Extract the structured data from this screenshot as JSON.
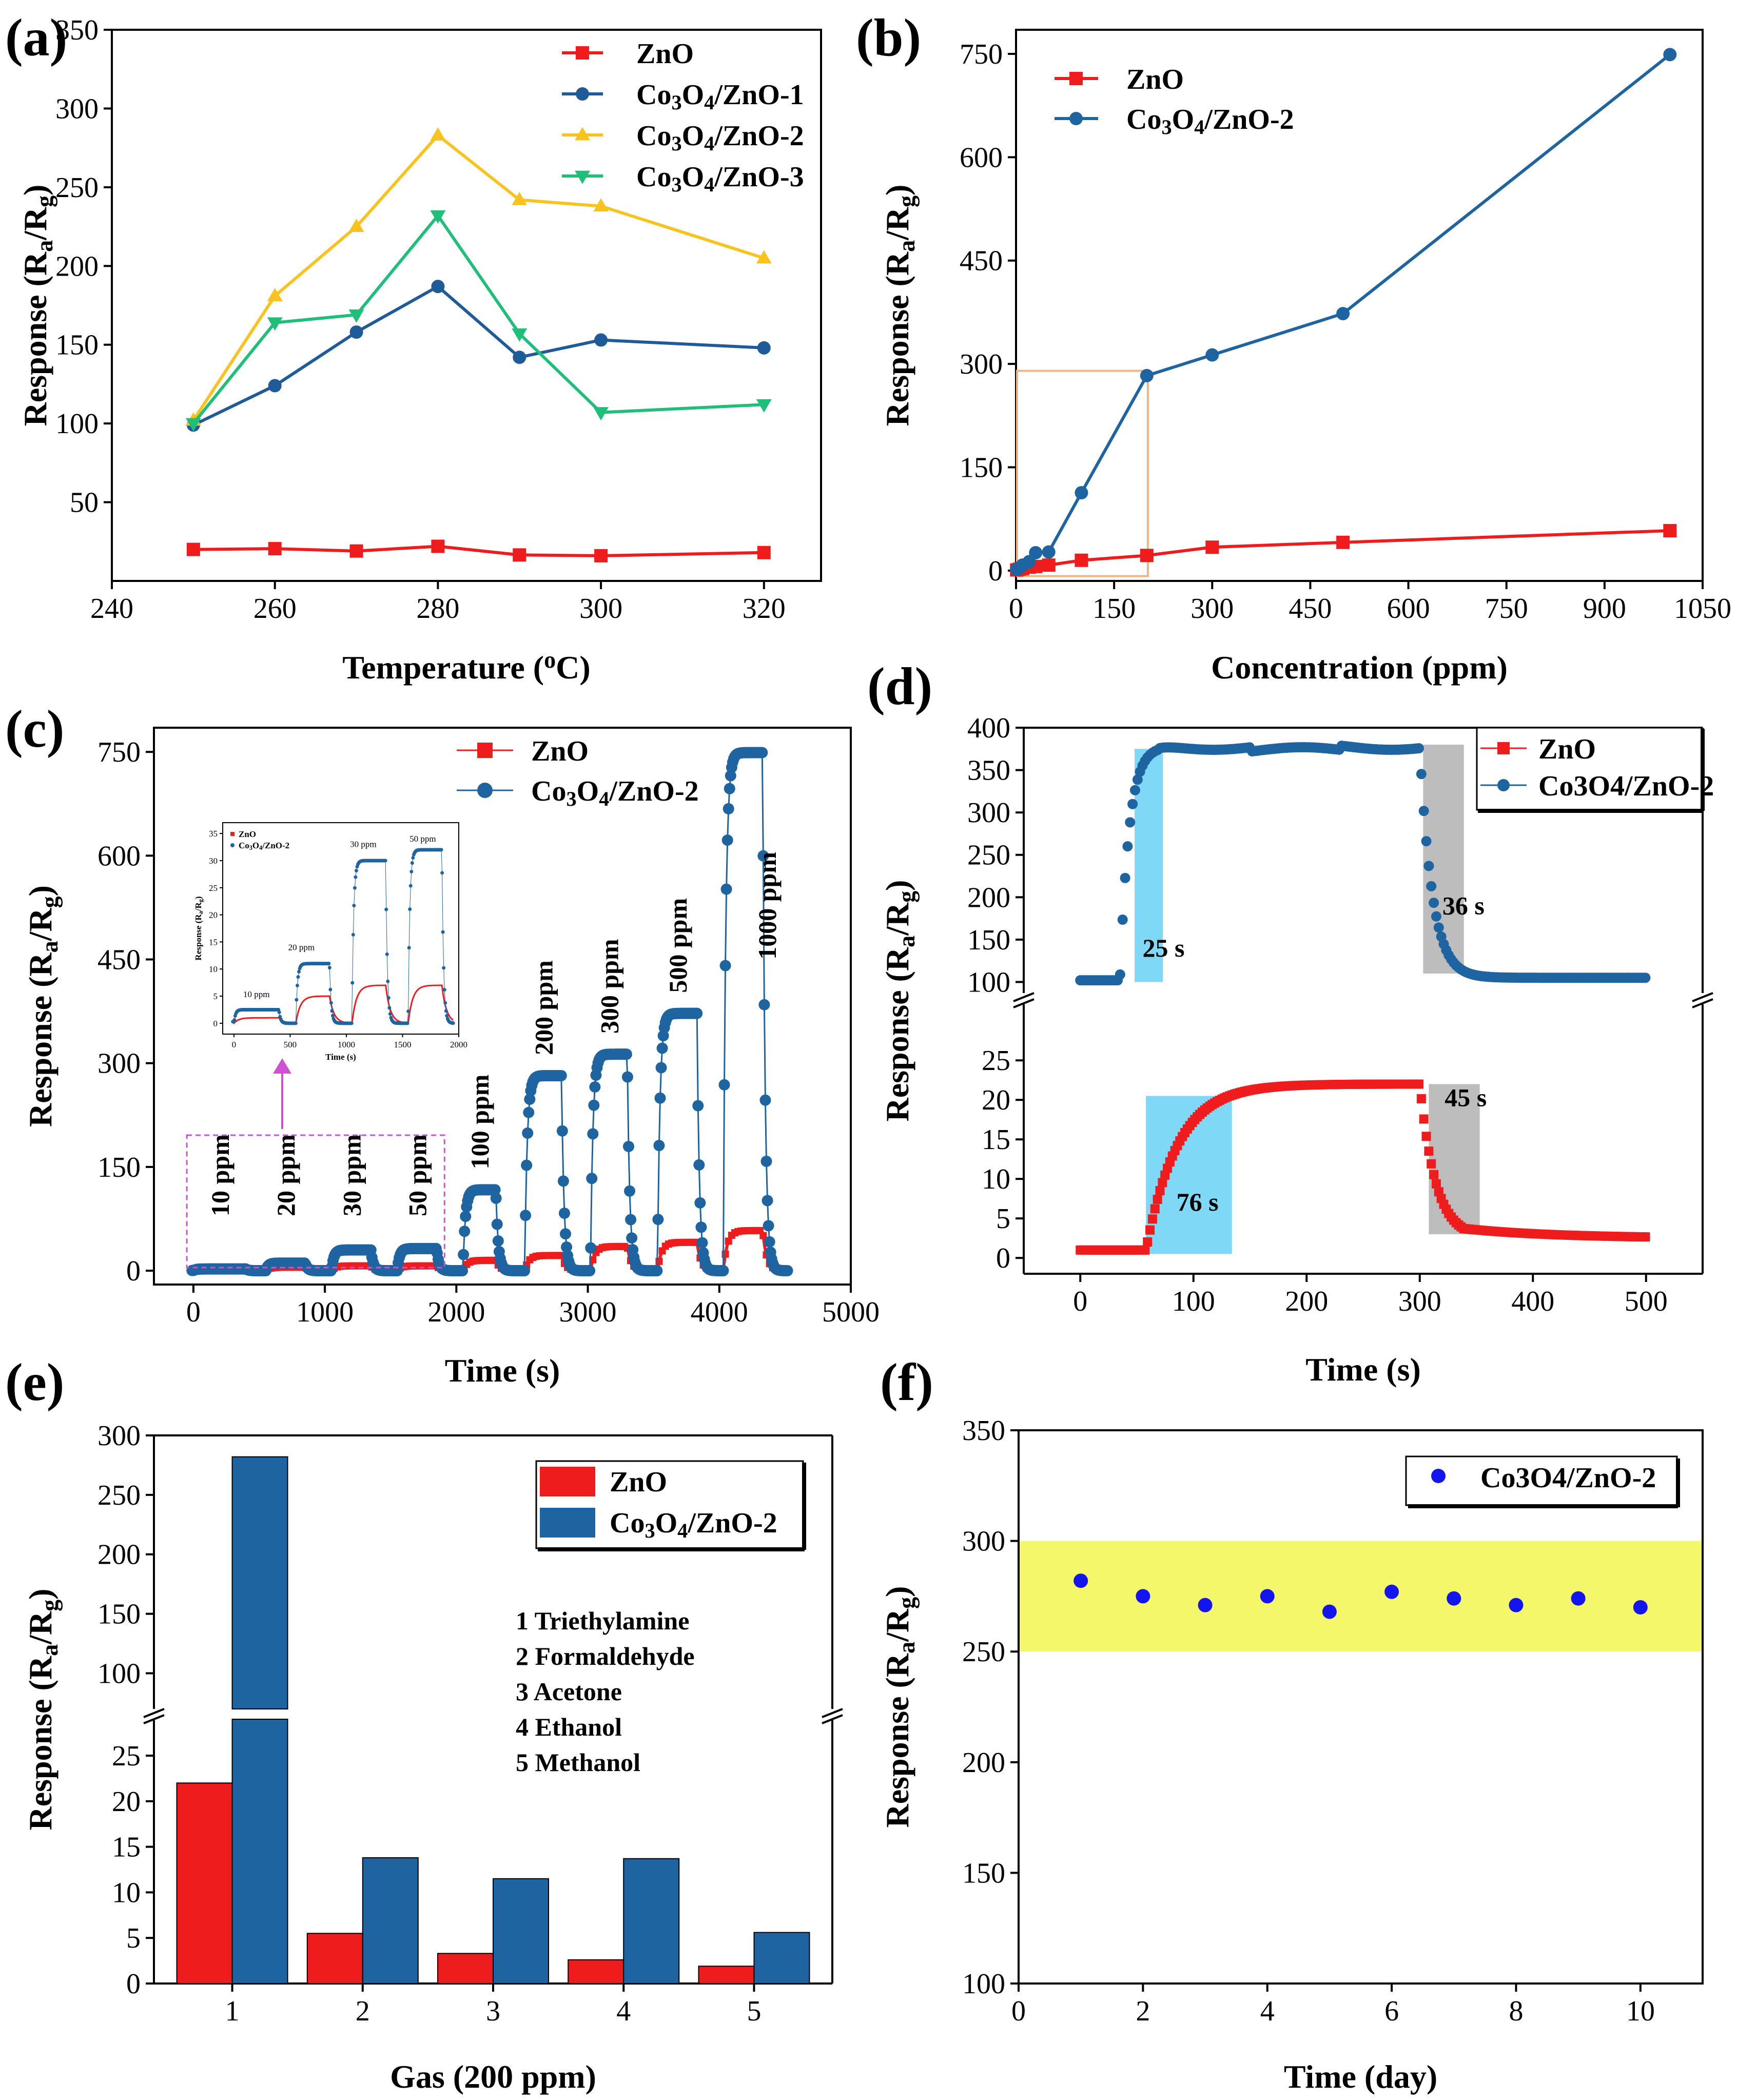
{
  "colors": {
    "zno": "#ee1c1c",
    "co1": "#1f5b99",
    "co2_yellow": "#f9c31f",
    "co3_green": "#1fbf7a",
    "co2_blue": "#1e64a0",
    "band_yellow": "#f5f76a",
    "band_cyan": "#7fd8f5",
    "band_gray": "#bdbdbd",
    "dot_blue": "#1414ee",
    "inset_box": "#d050d0",
    "zoom_box": "#f2b483"
  },
  "chart_data": [
    {
      "panel": "(a)",
      "type": "line",
      "xlabel": "Temperature (",
      "xlabel_sup": "o",
      "xlabel_tail": "C)",
      "ylabel": "Response (R",
      "ylabel_sub1": "a",
      "ylabel_mid": "/R",
      "ylabel_sub2": "g",
      "ylabel_tail": ")",
      "xlim": [
        240,
        327
      ],
      "ylim": [
        0,
        350
      ],
      "xticks": [
        240,
        260,
        280,
        300,
        320
      ],
      "yticks": [
        50,
        100,
        150,
        200,
        250,
        300,
        350
      ],
      "x": [
        250,
        260,
        270,
        280,
        290,
        300,
        320
      ],
      "series": [
        {
          "name": "ZnO",
          "legend_parts": [
            "ZnO"
          ],
          "color_key": "zno",
          "marker": "square",
          "values": [
            20,
            20.5,
            19,
            22,
            16.5,
            16,
            18
          ]
        },
        {
          "name": "Co3O4/ZnO-1",
          "legend_parts": [
            "Co",
            "3",
            "O",
            "4",
            "/ZnO-1"
          ],
          "color_key": "co1",
          "marker": "circle",
          "values": [
            99,
            124,
            158,
            187,
            142,
            153,
            148
          ]
        },
        {
          "name": "Co3O4/ZnO-2",
          "legend_parts": [
            "Co",
            "3",
            "O",
            "4",
            "/ZnO-2"
          ],
          "color_key": "co2_yellow",
          "marker": "triangle-up",
          "values": [
            102,
            181,
            225,
            283,
            242,
            238,
            205
          ]
        },
        {
          "name": "Co3O4/ZnO-3",
          "legend_parts": [
            "Co",
            "3",
            "O",
            "4",
            "/ZnO-3"
          ],
          "color_key": "co3_green",
          "marker": "triangle-down",
          "values": [
            100,
            164,
            169,
            232,
            157,
            107,
            112
          ]
        }
      ]
    },
    {
      "panel": "(b)",
      "type": "line",
      "xlabel": "Concentration (ppm)",
      "ylabel": "Response (R",
      "ylabel_sub1": "a",
      "ylabel_mid": "/R",
      "ylabel_sub2": "g",
      "ylabel_tail": ")",
      "xlim": [
        0,
        1050
      ],
      "ylim": [
        -15,
        785
      ],
      "xticks": [
        0,
        150,
        300,
        450,
        600,
        750,
        900,
        1050
      ],
      "yticks": [
        0,
        150,
        300,
        450,
        600,
        750
      ],
      "x": [
        1,
        5,
        10,
        20,
        30,
        50,
        100,
        200,
        300,
        500,
        1000
      ],
      "series": [
        {
          "name": "ZnO",
          "legend_parts": [
            "ZnO"
          ],
          "color_key": "zno",
          "marker": "square",
          "values": [
            1,
            2,
            3,
            5,
            6,
            8,
            15,
            22,
            34,
            41,
            58
          ]
        },
        {
          "name": "Co3O4/ZnO-2",
          "legend_parts": [
            "Co",
            "3",
            "O",
            "4",
            "/ZnO-2"
          ],
          "color_key": "co2_blue",
          "marker": "circle",
          "values": [
            2,
            4,
            8,
            13,
            26,
            27,
            113,
            283,
            313,
            373,
            749
          ]
        }
      ],
      "zoom_box": {
        "x": [
          0,
          200
        ],
        "y": [
          -8,
          290
        ]
      }
    },
    {
      "panel": "(c)",
      "type": "line",
      "xlabel": "Time (s)",
      "ylabel": "Response  (R",
      "ylabel_sub1": "a",
      "ylabel_mid": "/R",
      "ylabel_sub2": "g",
      "ylabel_tail": ")",
      "xlim": [
        -300,
        5000
      ],
      "ylim": [
        -20,
        785
      ],
      "xticks": [
        0,
        1000,
        2000,
        3000,
        4000,
        5000
      ],
      "yticks": [
        0,
        150,
        300,
        450,
        600,
        750
      ],
      "pulses": [
        {
          "label": "10 ppm",
          "on": 0,
          "off": 400,
          "zno": 1,
          "co": 2.5
        },
        {
          "label": "20 ppm",
          "on": 550,
          "off": 850,
          "zno": 5,
          "co": 11
        },
        {
          "label": "30 ppm",
          "on": 1050,
          "off": 1350,
          "zno": 7,
          "co": 30
        },
        {
          "label": "50 ppm",
          "on": 1550,
          "off": 1850,
          "zno": 7,
          "co": 32
        },
        {
          "label": "100 ppm",
          "on": 2050,
          "off": 2300,
          "zno": 15,
          "co": 117
        },
        {
          "label": "200 ppm",
          "on": 2520,
          "off": 2800,
          "zno": 22,
          "co": 282
        },
        {
          "label": "300 ppm",
          "on": 3020,
          "off": 3300,
          "zno": 35,
          "co": 313
        },
        {
          "label": "500 ppm",
          "on": 3530,
          "off": 3830,
          "zno": 41,
          "co": 372
        },
        {
          "label": "1000 ppm",
          "on": 4030,
          "off": 4330,
          "zno": 58,
          "co": 749
        }
      ],
      "series": [
        {
          "name": "ZnO",
          "legend_parts": [
            "ZnO"
          ],
          "color_key": "zno",
          "marker": "square"
        },
        {
          "name": "Co3O4/ZnO-2",
          "legend_parts": [
            "Co",
            "3",
            "O",
            "4",
            "/ZnO-2"
          ],
          "color_key": "co2_blue",
          "marker": "circle"
        }
      ],
      "inset": {
        "xlim": [
          -100,
          2000
        ],
        "ylim": [
          -2,
          37
        ],
        "xticks": [
          0,
          500,
          1000,
          1500,
          2000
        ],
        "yticks": [
          0,
          5,
          10,
          15,
          20,
          25,
          30,
          35
        ],
        "xlabel": "Time (s)",
        "ylabel": "Response (R",
        "ylabel_sub1": "a",
        "ylabel_mid": "/R",
        "ylabel_sub2": "g",
        "ylabel_tail": ")",
        "legend": [
          {
            "parts": [
              "ZnO"
            ],
            "color_key": "zno"
          },
          {
            "parts": [
              "Co",
              "3",
              "O",
              "4",
              "/ZnO-2"
            ],
            "color_key": "co2_blue"
          }
        ],
        "labels": [
          "10 ppm",
          "20 ppm",
          "30 ppm",
          "50 ppm"
        ]
      }
    },
    {
      "panel": "(d)",
      "type": "line",
      "xlabel": "Time (s)",
      "ylabel": "Response (R",
      "ylabel_sub1": "a",
      "ylabel_mid": "/R",
      "ylabel_sub2": "g",
      "ylabel_tail": ")",
      "xlim": [
        -50,
        550
      ],
      "upper_ylim": [
        90,
        400
      ],
      "upper_yticks": [
        100,
        150,
        200,
        250,
        300,
        350,
        400
      ],
      "lower_ylim": [
        -2,
        28
      ],
      "lower_yticks": [
        0,
        5,
        10,
        15,
        20,
        25
      ],
      "xticks": [
        0,
        100,
        200,
        300,
        400,
        500
      ],
      "co_curve": {
        "base": 102,
        "plateau": 378,
        "on": 35,
        "tau_rise": 8,
        "off": 300,
        "tail": 105,
        "tau_fall": 11
      },
      "zno_curve": {
        "base": 1,
        "plateau": 22,
        "on": 58,
        "tau_rise": 28,
        "off": 300,
        "tail": 2.5,
        "tau_fall": 14
      },
      "bands": [
        {
          "trace": "co",
          "x": [
            48,
            73
          ],
          "y": [
            100,
            375
          ],
          "color_key": "band_cyan",
          "label": "25 s"
        },
        {
          "trace": "co",
          "x": [
            303,
            339
          ],
          "y": [
            110,
            380
          ],
          "color_key": "band_gray",
          "label": "36 s"
        },
        {
          "trace": "zno",
          "x": [
            58,
            134
          ],
          "y": [
            0.5,
            20.5
          ],
          "color_key": "band_cyan",
          "label": "76 s"
        },
        {
          "trace": "zno",
          "x": [
            308,
            353
          ],
          "y": [
            3,
            22
          ],
          "color_key": "band_gray",
          "label": "45 s"
        }
      ],
      "series": [
        {
          "name": "ZnO",
          "legend_parts": [
            "ZnO"
          ],
          "color_key": "zno",
          "marker": "square"
        },
        {
          "name": "Co3O4/ZnO-2",
          "legend_parts": [
            "Co3O4/ZnO-2"
          ],
          "color_key": "co2_blue",
          "marker": "circle"
        }
      ]
    },
    {
      "panel": "(e)",
      "type": "bar",
      "xlabel": "Gas (200 ppm)",
      "ylabel": "Response (R",
      "ylabel_sub1": "a",
      "ylabel_mid": "/R",
      "ylabel_sub2": "g",
      "ylabel_tail": ")",
      "categories": [
        "1",
        "2",
        "3",
        "4",
        "5"
      ],
      "upper_ylim": [
        70,
        300
      ],
      "upper_yticks": [
        100,
        150,
        200,
        250,
        300
      ],
      "lower_ylim": [
        0,
        29
      ],
      "lower_yticks": [
        0,
        5,
        10,
        15,
        20,
        25
      ],
      "series": [
        {
          "name": "ZnO",
          "legend_parts": [
            "ZnO"
          ],
          "color_key": "zno",
          "values": [
            22,
            5.5,
            3.3,
            2.6,
            1.9
          ]
        },
        {
          "name": "Co3O4/ZnO-2",
          "legend_parts": [
            "Co",
            "3",
            "O",
            "4",
            "/ZnO-2"
          ],
          "color_key": "co2_blue",
          "values": [
            282,
            13.8,
            11.5,
            13.7,
            5.6
          ]
        }
      ],
      "gas_list": [
        "1 Triethylamine",
        "2 Formaldehyde",
        "3 Acetone",
        "4 Ethanol",
        "5 Methanol"
      ]
    },
    {
      "panel": "(f)",
      "type": "scatter",
      "xlabel": "Time (day)",
      "ylabel": "Response (R",
      "ylabel_sub1": "a",
      "ylabel_mid": "/R",
      "ylabel_sub2": "g",
      "ylabel_tail": ")",
      "xlim": [
        0,
        11
      ],
      "ylim": [
        100,
        350
      ],
      "xticks": [
        0,
        2,
        4,
        6,
        8,
        10
      ],
      "yticks": [
        100,
        150,
        200,
        250,
        300,
        350
      ],
      "x": [
        1,
        2,
        3,
        4,
        5,
        6,
        7,
        8,
        9,
        10
      ],
      "series": [
        {
          "name": "Co3O4/ZnO-2",
          "legend_parts": [
            "Co3O4/ZnO-2"
          ],
          "color_key": "dot_blue",
          "marker": "circle",
          "values": [
            282,
            275,
            271,
            275,
            268,
            277,
            274,
            271,
            274,
            270
          ]
        }
      ],
      "band": {
        "y": [
          250,
          300
        ],
        "color_key": "band_yellow"
      }
    }
  ]
}
